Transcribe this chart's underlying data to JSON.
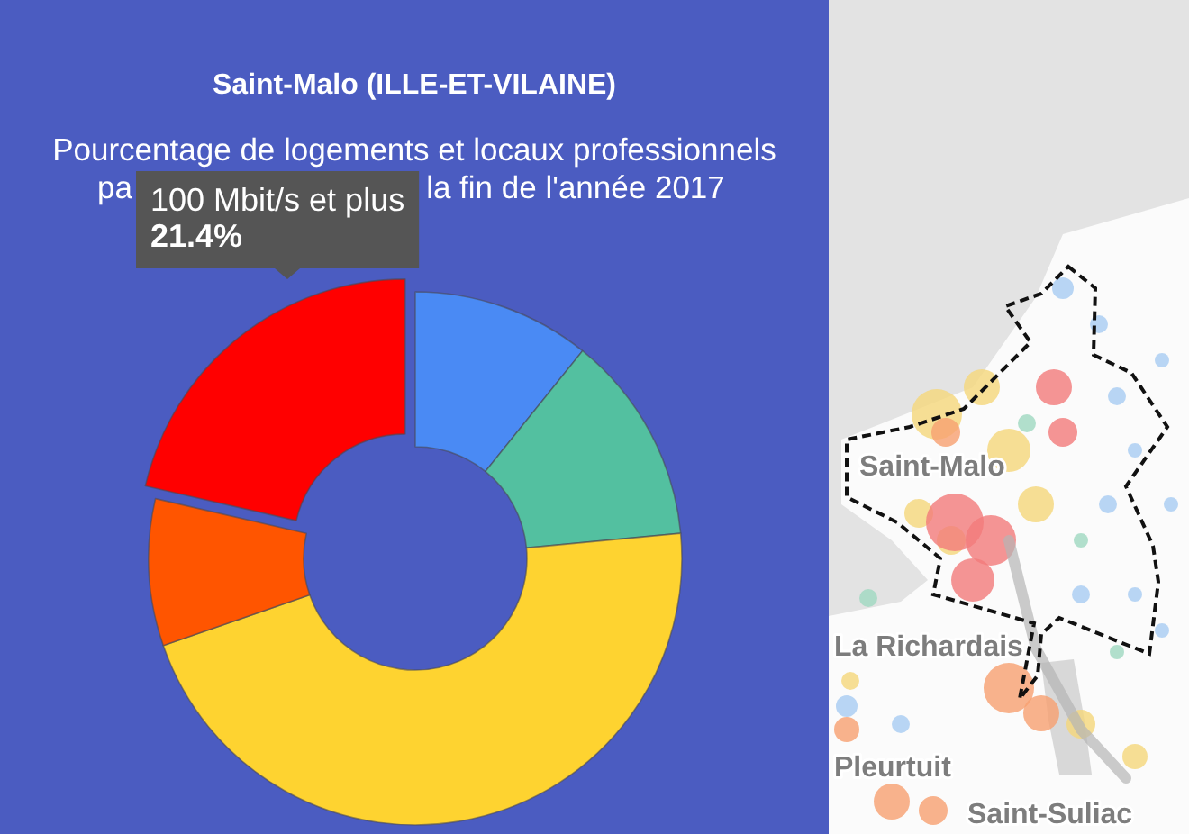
{
  "chart_data": {
    "type": "donut",
    "title": "Saint-Malo (ILLE-ET-VILAINE)",
    "subtitle": "Pourcentage de logements et locaux professionnels",
    "categories": [
      null,
      null,
      null,
      null,
      "100 Mbit/s et plus"
    ],
    "values": [
      10.8,
      12.7,
      46.2,
      8.9,
      21.4
    ],
    "colors": [
      "#4a8af4",
      "#53c0a0",
      "#fed330",
      "#ff5500",
      "#ff0000"
    ],
    "value_labels": [
      null,
      null,
      null,
      null,
      "21.4%"
    ],
    "annotations": [
      "pa",
      "la fin de l'année 2017",
      "Saint-Malo",
      "La Richardais",
      "Pleurtuit",
      "Saint-Suliac"
    ]
  }
}
